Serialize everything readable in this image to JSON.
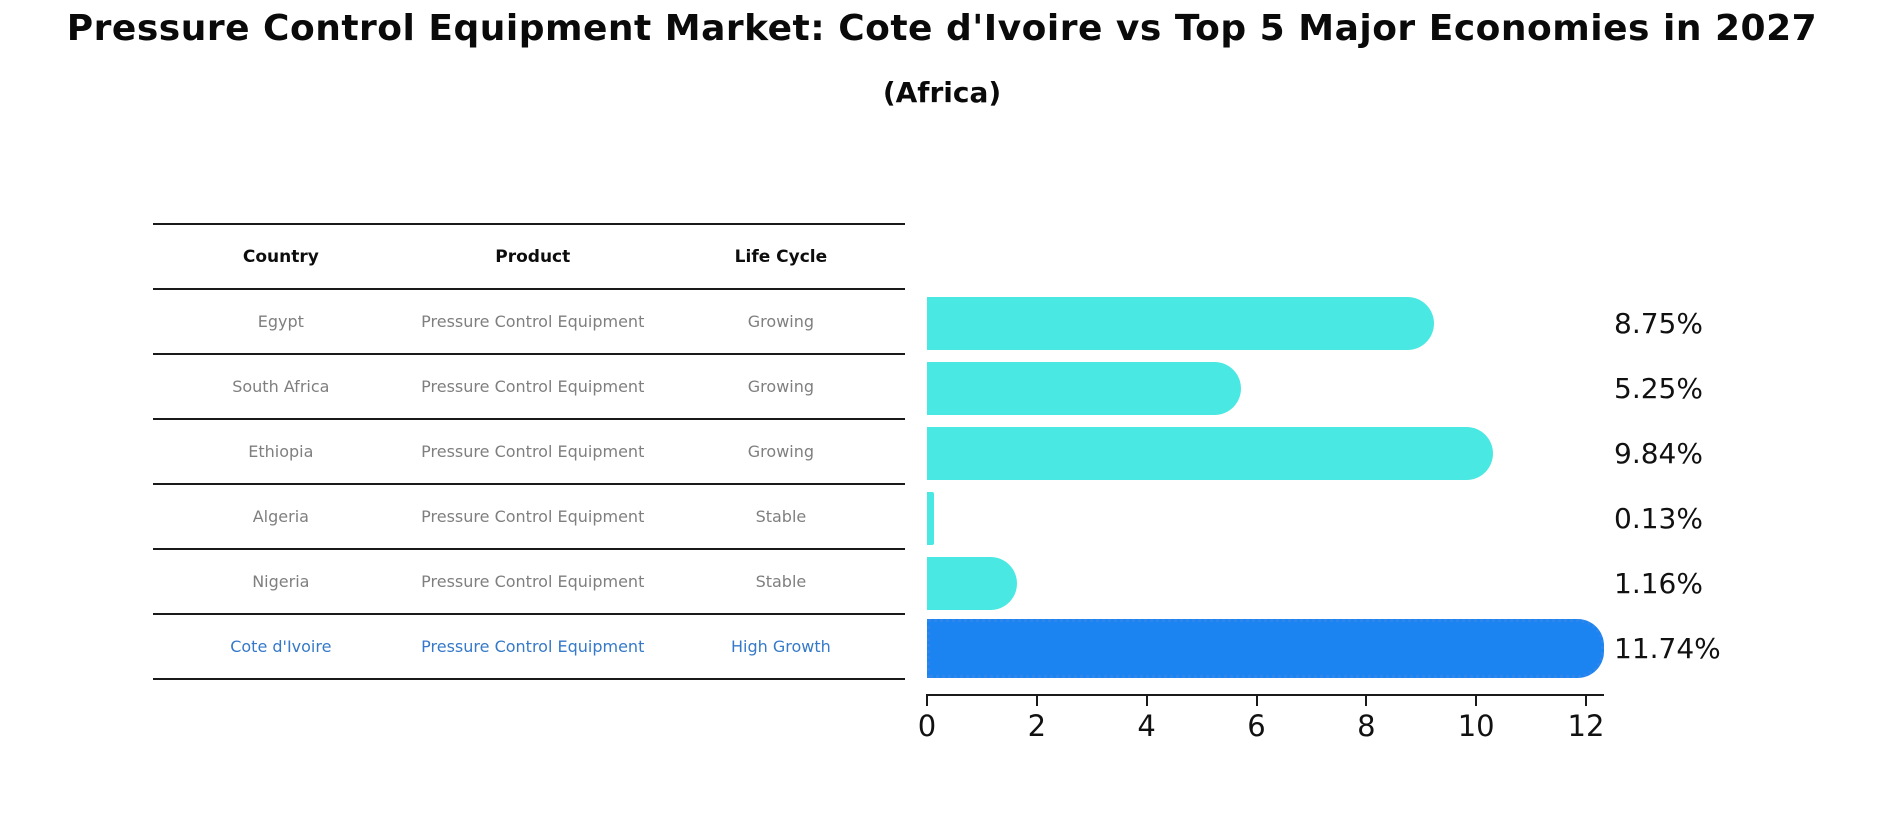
{
  "page": {
    "title": "Pressure Control Equipment Market: Cote d'Ivoire vs Top 5 Major Economies in 2027",
    "subtitle": "(Africa)"
  },
  "table": {
    "headers": [
      "Country",
      "Product",
      "Life Cycle"
    ],
    "rows": [
      {
        "country": "Egypt",
        "product": "Pressure Control Equipment",
        "life_cycle": "Growing",
        "highlight": false
      },
      {
        "country": "South Africa",
        "product": "Pressure Control Equipment",
        "life_cycle": "Growing",
        "highlight": false
      },
      {
        "country": "Ethiopia",
        "product": "Pressure Control Equipment",
        "life_cycle": "Growing",
        "highlight": false
      },
      {
        "country": "Algeria",
        "product": "Pressure Control Equipment",
        "life_cycle": "Stable",
        "highlight": false
      },
      {
        "country": "Nigeria",
        "product": "Pressure Control Equipment",
        "life_cycle": "Stable",
        "highlight": false
      },
      {
        "country": "Cote d'Ivoire",
        "product": "Pressure Control Equipment",
        "life_cycle": "High Growth",
        "highlight": true
      }
    ]
  },
  "chart_data": {
    "type": "bar",
    "orientation": "horizontal",
    "title": "Pressure Control Equipment Market: Cote d'Ivoire vs Top 5 Major Economies in 2027 (Africa)",
    "categories": [
      "Egypt",
      "South Africa",
      "Ethiopia",
      "Algeria",
      "Nigeria",
      "Cote d'Ivoire"
    ],
    "values": [
      8.75,
      5.25,
      9.84,
      0.13,
      1.16,
      11.74
    ],
    "value_labels": [
      "8.75%",
      "5.25%",
      "9.84%",
      "0.13%",
      "1.16%",
      "11.74%"
    ],
    "xlabel": "",
    "ylabel": "",
    "xlim": [
      0,
      12
    ],
    "x_ticks": [
      "0",
      "2",
      "4",
      "6",
      "8",
      "10",
      "12"
    ],
    "grid": false,
    "legend": false,
    "bar_color": "#4AE8E2",
    "highlight_index": 5,
    "highlight_bar_color": "#1B84F0",
    "highlight_border_color": "#2E86EC",
    "highlight_text_color": "#3579C8",
    "axis_color": "#1A1A1A"
  }
}
